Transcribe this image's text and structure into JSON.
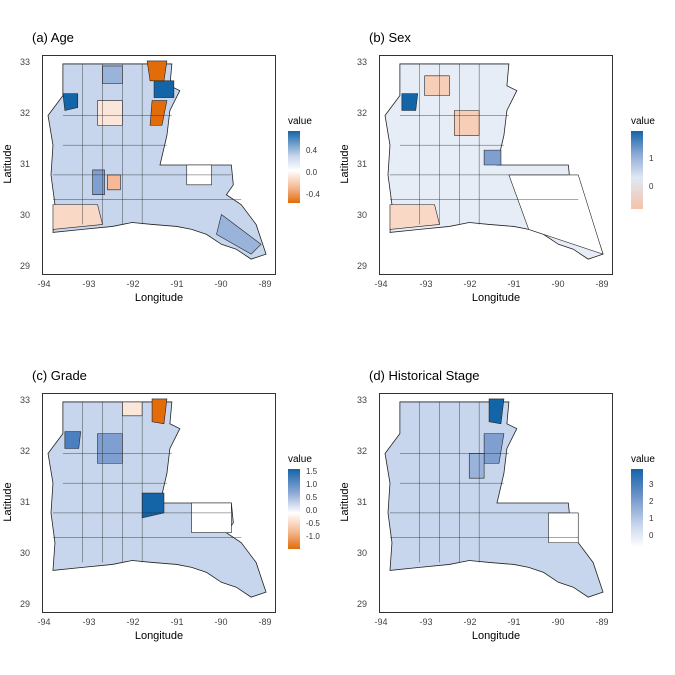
{
  "panels": [
    {
      "title": "(a) Age",
      "xlabel": "Longitude",
      "ylabel": "Latitude",
      "xticks": [
        "-94",
        "-93",
        "-92",
        "-91",
        "-90",
        "-89"
      ],
      "yticks": [
        "33",
        "32",
        "31",
        "30",
        "29"
      ],
      "legend": {
        "title": "value",
        "labels": [
          "0.4",
          "0.0",
          "-0.4"
        ],
        "gradient": [
          "#2166ac",
          "#ffffff",
          "#e36c0a"
        ]
      }
    },
    {
      "title": "(b) Sex",
      "xlabel": "Longitude",
      "ylabel": "Latitude",
      "xticks": [
        "-94",
        "-93",
        "-92",
        "-91",
        "-90",
        "-89"
      ],
      "yticks": [
        "33",
        "32",
        "31",
        "30",
        "29"
      ],
      "legend": {
        "title": "value",
        "labels": [
          "1",
          "0"
        ],
        "gradient": [
          "#1464a8",
          "#dfe8f5",
          "#f6c2a8"
        ]
      }
    },
    {
      "title": "(c) Grade",
      "xlabel": "Longitude",
      "ylabel": "Latitude",
      "xticks": [
        "-94",
        "-93",
        "-92",
        "-91",
        "-90",
        "-89"
      ],
      "yticks": [
        "33",
        "32",
        "31",
        "30",
        "29"
      ],
      "legend": {
        "title": "value",
        "labels": [
          "1.5",
          "1.0",
          "0.5",
          "0.0",
          "-0.5",
          "-1.0"
        ],
        "gradient": [
          "#1464a8",
          "#ffffff",
          "#e36c0a"
        ]
      }
    },
    {
      "title": "(d) Historical Stage",
      "xlabel": "Longitude",
      "ylabel": "Latitude",
      "xticks": [
        "-94",
        "-93",
        "-92",
        "-91",
        "-90",
        "-89"
      ],
      "yticks": [
        "33",
        "32",
        "31",
        "30",
        "29"
      ],
      "legend": {
        "title": "value",
        "labels": [
          "3",
          "2",
          "1",
          "0"
        ],
        "gradient": [
          "#1464a8",
          "#a8c0e0",
          "#ffffff"
        ]
      }
    }
  ],
  "colors": {
    "border": "#222222",
    "blue_strong": "#1464a8",
    "blue_mid": "#7f9fd0",
    "blue_light": "#c3d2ea",
    "orange_strong": "#e36c0a",
    "orange_light": "#f7cfb8"
  }
}
